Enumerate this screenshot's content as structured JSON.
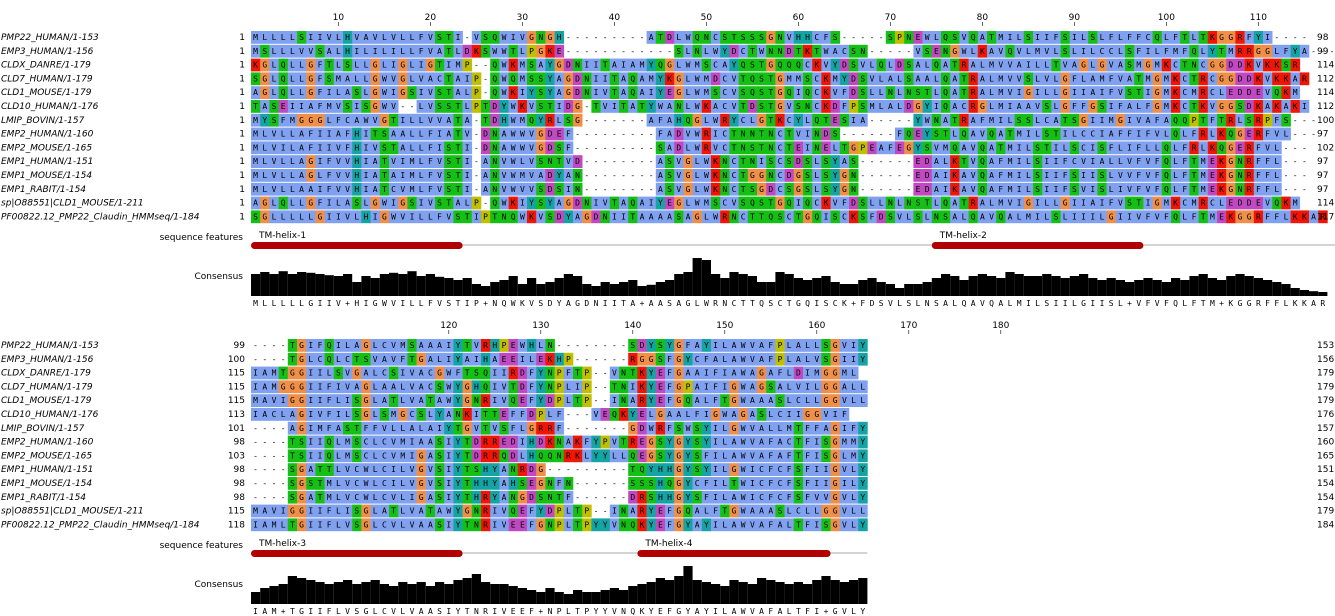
{
  "colors": {
    "hydrophobic": "#80a0f0",
    "polar": "#15c015",
    "cysteine": "#f08080",
    "glycine": "#f09048",
    "proline": "#c0c000",
    "aromatic": "#15a4a4",
    "acidic": "#c048c0",
    "basic": "#f01505",
    "helix": "#b00000",
    "consensus": "#000000"
  },
  "sequence_names": [
    "PMP22_HUMAN/1-153",
    "EMP3_HUMAN/1-156",
    "CLDX_DANRE/1-179",
    "CLD7_HUMAN/1-179",
    "CLD1_MOUSE/1-179",
    "CLD10_HUMAN/1-176",
    "LMIP_BOVIN/1-157",
    "EMP2_HUMAN/1-160",
    "EMP2_MOUSE/1-165",
    "EMP1_HUMAN/1-151",
    "EMP1_MOUSE/1-154",
    "EMP1_RABIT/1-154",
    "sp|O88551|CLD1_MOUSE/1-211",
    "PF00822.12_PMP22_Claudin_HMMseq/1-184"
  ],
  "blocks": [
    {
      "ruler_ticks": [
        "10",
        "20",
        "30",
        "40",
        "50",
        "60",
        "70",
        "80",
        "90",
        "100",
        "110"
      ],
      "start_positions": [
        "1",
        "1",
        "1",
        "1",
        "1",
        "1",
        "1",
        "1",
        "1",
        "1",
        "1",
        "1",
        "1",
        "1"
      ],
      "end_positions": [
        "98",
        "99",
        "114",
        "112",
        "114",
        "112",
        "100",
        "97",
        "102",
        "97",
        "97",
        "97",
        "114",
        "117"
      ],
      "sequences": [
        "MLLLLSIIVLHVAVLVLLFVSTI-VSQWIVGNGH---------ATDLWQNCSTSSSGNVHHCFS-----SPNEWLQSVQATMILSIIFSILSLFLFFCQLFTLTKGGRFYI----",
        "MSLLLVVSALHILILILLFVATLDKSWWTLPGKE------------SLNLWYDCTWNNDTKTWACSN-----VSENGWLKAVQVLMVLSLILCCLSFILFMFQLYTMRRGGLFYA---",
        "KGLQLLGFTLSLLGLIGLIGTIMP--QWKMSAYGDNIITAIAMYQGLWMSCAYQSTGQQQCKVYDSVLQLDSALQATRALMVVAILLTVAGLGVASMGMKCTNCGGDDKVKKSR",
        "SGLQLLGFSMALLGWVGLVACTAIP-QWQMSSYAGDNIITAQAMYKGLWMDCVTQSTGMMSCKMYDSVLALSAALQATRALMVVSLVLGFLAMFVATMGMKCTRCGGDDKVKKAR",
        "AGLQLLGFILASLGWIGSIVSTALP-QWKIYSYAGDNIVTAQAIYEGLWMSCVSQSTGQIQCKVFDSLLNLNSTLQATRALMVIGILLGIIAIFVSTIGMKCMRCLEDDEVQKM",
        "TASEIIAFMVSISGWV--LVSSTLPTDYWKVSTIDG-TVITATYWANLWKACVTDSTGVSNCKDFPSMLALDGYIQACRGLMIAAVSLGFFGSIFALFGMKCTKVGGSDKAKAKI",
        "MYSFMGGGLFCAWVGTILLVVATA-TDHWMQYRLSG-------AFAHQGLWRYCLGTKCYLQTESIA-----YWNATRAFMILSSLCATSGIIMGIVAFAQQPTFTRLSRPFS---",
        "MLVLLAFIIAFHITSAALLFIATV-DNAWWVGDEF---------FADVWRICTNNTNCTVINDS------FQEYSTLQAVQATMILSTILCCIAFFIFVLQLFRLKQGERFVL---",
        "MLVILAFIIVFHIVSTALLFISTI-DNAWWVGDSF---------SADLWRVCTNSTNCTEINELTGPEAFEGYSVMQAVQATMILSTILSCISFLIFLLQLFRLKQGERFVL---",
        "MLVLLAGIFVVHIATVIMLFVSTI-ANVWLVSNTVD--------ASVGLWKNCTNISCSDSLSYAS------EDALKTVQAFMILSIIFCVIALLVFVFQLFTMEKGNRFFL---",
        "MLVLLAGLFVVHIATAIMLFVSTI-ANVWMVADYAN--------ASVGLWKNCTGGNCDGSLSYGN------EDAIKAVQAFMILSIIFSIISLVVFVFQLFTMEKGNRFFL---",
        "MLVLLAAIFVVHIATCVMLFVSTI-ANVWVVSDSIN--------ASVGLWKNCTSGDCSGSLSYGN------EDAIKAVQAFMILSIIFSVISLIVFVFQLFTMEKGNRFFL---",
        "AGLQLLGFILASLGWIGSIVSTALP-QWKIYSYAGDNIVTAQAIYEGLWMSCVSQSTGQIQCKVFDSLLNLNSTLQATRALMVIGILLGIIAIFVSTIGMKCMRCLEDDEVQKM",
        "SGLLLLLGIIVLHIGWVILLFVSTIPTNQWKVSDYAGDNIITAAAASAGLWRNCTTQSCTGQISCKSFDSVLSLNSALQAVQALMILSLIIILGIIVFVFQLFTMEKGGRFFLKKAR"
      ],
      "features": [
        {
          "label": "TM-helix-1"
        },
        {
          "label": "TM-helix-2"
        }
      ],
      "consensus_heights": [
        0.55,
        0.6,
        0.55,
        0.62,
        0.55,
        0.6,
        0.58,
        0.55,
        0.52,
        0.5,
        0.55,
        0.35,
        0.5,
        0.45,
        0.55,
        0.58,
        0.55,
        0.62,
        0.5,
        0.55,
        0.48,
        0.45,
        0.4,
        0.45,
        0.3,
        0.25,
        0.35,
        0.4,
        0.5,
        0.3,
        0.45,
        0.3,
        0.35,
        0.45,
        0.55,
        0.5,
        0.3,
        0.25,
        0.35,
        0.3,
        0.35,
        0.4,
        0.25,
        0.28,
        0.35,
        0.4,
        0.55,
        0.6,
        0.95,
        0.9,
        0.55,
        0.45,
        0.6,
        0.55,
        0.5,
        0.35,
        0.35,
        0.6,
        0.55,
        0.45,
        0.4,
        0.45,
        0.5,
        0.35,
        0.3,
        0.3,
        0.4,
        0.45,
        0.35,
        0.3,
        0.2,
        0.3,
        0.3,
        0.35,
        0.45,
        0.55,
        0.5,
        0.4,
        0.5,
        0.55,
        0.5,
        0.45,
        0.6,
        0.55,
        0.5,
        0.5,
        0.55,
        0.5,
        0.45,
        0.5,
        0.55,
        0.45,
        0.4,
        0.45,
        0.4,
        0.35,
        0.4,
        0.45,
        0.4,
        0.35,
        0.45,
        0.4,
        0.5,
        0.55,
        0.45,
        0.4,
        0.5,
        0.55,
        0.5,
        0.45,
        0.4,
        0.35,
        0.3,
        0.2,
        0.15,
        0.12,
        0.1
      ],
      "consensus_sequence": "MLLLLLGIIV+HIGWVILLFVSTIP+NQWKVSDYAGDNIITA+AASAGLWRNCTTQSCTGQISCK+FDSVLSLNSALQAVQALMILSIILGIISL+VFVFQLFTM+KGGRFFLKKAR"
    },
    {
      "ruler_ticks": [
        "120",
        "130",
        "140",
        "150",
        "160",
        "170",
        "180"
      ],
      "start_positions": [
        "99",
        "100",
        "115",
        "115",
        "115",
        "113",
        "101",
        "98",
        "103",
        "98",
        "98",
        "98",
        "115",
        "118"
      ],
      "end_positions": [
        "153",
        "156",
        "179",
        "179",
        "179",
        "176",
        "157",
        "160",
        "165",
        "151",
        "154",
        "154",
        "179",
        "184"
      ],
      "sequences": [
        "----TGIFQILAGLCVMSAAAIYTVRHPEWHLN--------SDYSYGFAYILAWVAFPLALLSGVIY",
        "----TGLCQLCTSVAVFTGALIYAIHAEEILEKHP------RGGSFGYCFALAWVAFPLALVSGIIY",
        "IAMTGGIILSVGALCSIVACGWFTSQIIRDFYNPFTP--VNTKYEFGAAIFIAWAGAFLDIMGGML",
        "IAMGGGIIFIVAGLAALVACSWYGHQIVTDFYNPLIP--TNIKYEFGPAIFIGWAGSALVILGGALL",
        "MAVIGGIIFLISGLATLVATAWYGNRIVQEFYDPLTP--INARYEFGQALFTGWAAASLCLLGGVLL",
        "IACLAGIVFILSGLSMGCSLYANKITTEFFDPLF---VEQKYELGAALFIGWAGASLCIIGGVIF",
        "----AGIMFASTFFVLLALAIYTGVTVSFLGRRF-------GDWRFSWSYILGWVALLMTFFAGIFY",
        "----TSIIQLMSCLCVMIAASIYTDRREDIHDKNAKFYPVTREGSYGYSYILAWVAFACTFISGMMY",
        "----TSIIQLMSCLCVMIGASIYTDRRQDLHQQNRKLYYLLQEGSYGYSFILAWVAFAFTFISGLMY",
        "----SGATTLVCWLCILVGVSIYTSHYANRDG---------TQYHHGYSYILGWICFCFSFIIGVLY",
        "----SGSTMLVCWLCILVGVSIYTHHYAHSEGNFN------SSSHQGYCFILTWICFCFSFIIGILY",
        "----SGATMLVCWLCVLIGASIYTHRYANGDSNTF------DRSHHGYSFILAWICFCFSFVVGVLY",
        "MAVIGGIIFLISGLATLVATAWYGNRIVQEFYDPLTP--INARYEFGQALFTGWAAASLCLLGGVLL",
        "IAMLTGIIFLVSGLCVLVAASIYTNRIVEEFGNPLTPYYVNQKYEFGYAYILAWVAFALTFISGVLY"
      ],
      "features": [
        {
          "label": "TM-helix-3"
        },
        {
          "label": "TM-helix-4"
        }
      ],
      "consensus_heights": [
        0.3,
        0.4,
        0.45,
        0.5,
        0.7,
        0.65,
        0.6,
        0.55,
        0.5,
        0.55,
        0.6,
        0.5,
        0.55,
        0.6,
        0.5,
        0.45,
        0.55,
        0.5,
        0.55,
        0.45,
        0.55,
        0.5,
        0.6,
        0.65,
        0.75,
        0.55,
        0.5,
        0.5,
        0.45,
        0.4,
        0.35,
        0.3,
        0.4,
        0.3,
        0.25,
        0.35,
        0.3,
        0.3,
        0.35,
        0.4,
        0.35,
        0.45,
        0.5,
        0.55,
        0.65,
        0.6,
        0.7,
        0.95,
        0.6,
        0.55,
        0.5,
        0.45,
        0.6,
        0.55,
        0.5,
        0.65,
        0.6,
        0.55,
        0.5,
        0.55,
        0.5,
        0.6,
        0.7,
        0.6,
        0.55,
        0.6,
        0.65
      ],
      "consensus_sequence": "IAM+TGIIFLVSGLCVLVAASIYTNRIVEEF+NPLTPYYVNQKYEFGYAYILAWVAFALTFI+GVLY"
    }
  ]
}
